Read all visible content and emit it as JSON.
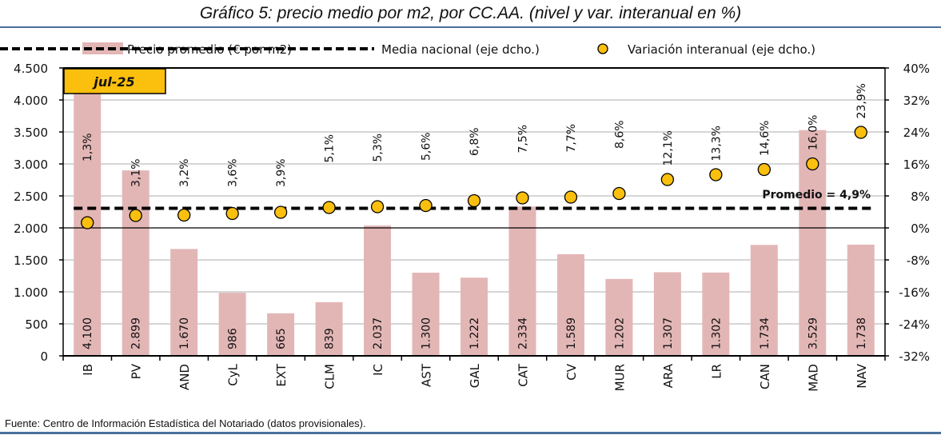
{
  "title": "Gráfico 5: precio medio por m2, por CC.AA. (nivel y var. interanual en %)",
  "source": "Fuente: Centro de Información Estadística del Notariado (datos provisionales).",
  "colors": {
    "bar": "#e3b6b6",
    "dot": "#fbbf0d",
    "rule": "#4a6f9a",
    "badge": "#fbbf0d"
  },
  "chart_data": {
    "type": "bar",
    "badge": "jul-25",
    "categories": [
      "IB",
      "PV",
      "AND",
      "CyL",
      "EXT",
      "CLM",
      "IC",
      "AST",
      "GAL",
      "CAT",
      "CV",
      "MUR",
      "ARA",
      "LR",
      "CAN",
      "MAD",
      "NAV"
    ],
    "series": [
      {
        "name": "Precio promedio (€ por m2)",
        "type": "bar",
        "axis": "left",
        "values": [
          4100,
          2899,
          1670,
          986,
          665,
          839,
          2037,
          1300,
          1222,
          2334,
          1589,
          1202,
          1307,
          1302,
          1734,
          3529,
          1738
        ],
        "labels": [
          "4.100",
          "2.899",
          "1.670",
          "986",
          "665",
          "839",
          "2.037",
          "1.300",
          "1.222",
          "2.334",
          "1.589",
          "1.202",
          "1.307",
          "1.302",
          "1.734",
          "3.529",
          "1.738"
        ]
      },
      {
        "name": "Media nacional (eje dcho.)",
        "type": "line",
        "axis": "right",
        "value": 4.9,
        "annotation": "Promedio = 4,9%"
      },
      {
        "name": "Variación interanual (eje dcho.)",
        "type": "scatter",
        "axis": "right",
        "values": [
          1.3,
          3.1,
          3.2,
          3.6,
          3.9,
          5.1,
          5.3,
          5.6,
          6.8,
          7.5,
          7.7,
          8.6,
          12.1,
          13.3,
          14.6,
          16.0,
          23.9
        ],
        "labels": [
          "1,3%",
          "3,1%",
          "3,2%",
          "3,6%",
          "3,9%",
          "5,1%",
          "5,3%",
          "5,6%",
          "6,8%",
          "7,5%",
          "7,7%",
          "8,6%",
          "12,1%",
          "13,3%",
          "14,6%",
          "16,0%",
          "23,9%"
        ]
      }
    ],
    "left_axis": {
      "ylim": [
        0,
        4500
      ],
      "ticks": [
        0,
        500,
        1000,
        1500,
        2000,
        2500,
        3000,
        3500,
        4000,
        4500
      ],
      "tick_labels": [
        "0",
        "500",
        "1.000",
        "1.500",
        "2.000",
        "2.500",
        "3.000",
        "3.500",
        "4.000",
        "4.500"
      ]
    },
    "right_axis": {
      "ylim": [
        -32,
        40
      ],
      "ticks": [
        -32,
        -24,
        -16,
        -8,
        0,
        8,
        16,
        24,
        32,
        40
      ],
      "tick_labels": [
        "-32%",
        "-24%",
        "-16%",
        "-8%",
        "0%",
        "8%",
        "16%",
        "24%",
        "32%",
        "40%"
      ]
    },
    "grid": true,
    "legend": "top"
  }
}
